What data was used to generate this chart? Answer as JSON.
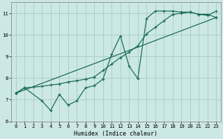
{
  "xlabel": "Humidex (Indice chaleur)",
  "xlim": [
    -0.5,
    23.5
  ],
  "ylim": [
    6,
    11.5
  ],
  "xticks": [
    0,
    1,
    2,
    3,
    4,
    5,
    6,
    7,
    8,
    9,
    10,
    11,
    12,
    13,
    14,
    15,
    16,
    17,
    18,
    19,
    20,
    21,
    22,
    23
  ],
  "yticks": [
    6,
    7,
    8,
    9,
    10,
    11
  ],
  "bg_color": "#cce8e4",
  "grid_color": "#aacfcb",
  "line_color": "#1a6b5e",
  "line1_x": [
    0,
    1,
    3,
    4,
    5,
    6,
    7,
    8,
    9,
    10,
    11,
    12,
    13,
    14,
    15,
    16,
    17,
    18,
    19,
    20,
    21,
    22,
    23
  ],
  "line1_y": [
    7.3,
    7.55,
    6.95,
    6.5,
    7.25,
    6.75,
    6.95,
    7.55,
    7.65,
    7.95,
    9.1,
    9.95,
    8.55,
    7.98,
    10.75,
    11.1,
    11.1,
    11.1,
    11.05,
    11.05,
    10.95,
    10.9,
    11.1
  ],
  "line2_x": [
    0,
    1,
    2,
    3,
    4,
    5,
    6,
    7,
    8,
    9,
    10,
    11,
    12,
    13,
    14,
    15,
    16,
    17,
    18,
    19,
    20,
    21,
    22,
    23
  ],
  "line2_y": [
    7.3,
    7.55,
    7.58,
    7.62,
    7.68,
    7.73,
    7.82,
    7.88,
    7.95,
    8.05,
    8.35,
    8.65,
    8.95,
    9.2,
    9.5,
    10.05,
    10.35,
    10.65,
    10.95,
    11.0,
    11.05,
    10.95,
    10.95,
    10.8
  ],
  "line3_x": [
    0,
    23
  ],
  "line3_y": [
    7.3,
    10.8
  ]
}
